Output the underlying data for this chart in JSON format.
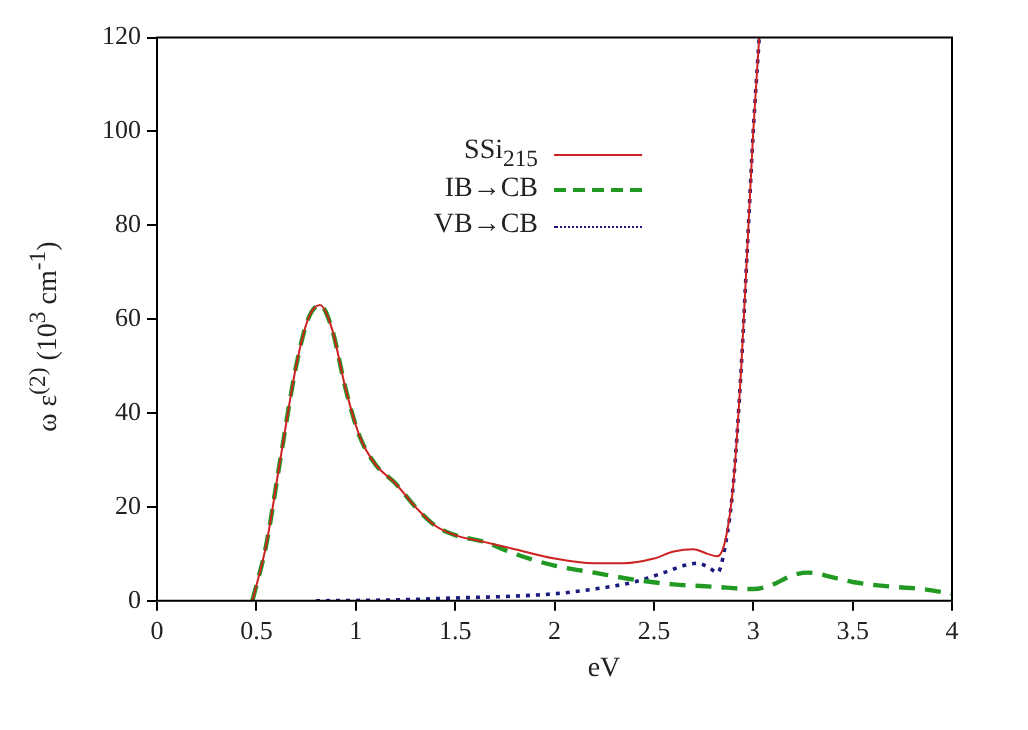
{
  "chart_data": {
    "type": "line",
    "xlabel": "eV",
    "ylabel": "ω ε$^{(2)}$  (10$^{3}$ cm$^{-1}$)",
    "xlim": [
      0,
      4
    ],
    "xticks": [
      0,
      0.5,
      1,
      1.5,
      2,
      2.5,
      3,
      3.5,
      4
    ],
    "ylim": [
      0,
      120
    ],
    "yticks": [
      0,
      20,
      40,
      60,
      80,
      100,
      120
    ],
    "grid": false,
    "legend": "top right",
    "marker": "none",
    "series": [
      {
        "name": "SSi$_{215}$",
        "color": "#cc2222",
        "line_style": "solid",
        "x": [
          0.48,
          0.55,
          0.62,
          0.7,
          0.76,
          0.82,
          0.88,
          0.95,
          1.02,
          1.1,
          1.2,
          1.3,
          1.4,
          1.5,
          1.65,
          1.8,
          2.0,
          2.2,
          2.35,
          2.5,
          2.6,
          2.7,
          2.77,
          2.82,
          2.86,
          2.9,
          2.94,
          2.97,
          3.0,
          3.03
        ],
        "values": [
          0,
          12,
          30,
          50,
          60,
          63,
          58,
          45,
          35,
          29,
          25,
          20,
          16,
          14,
          12.5,
          11,
          9,
          8,
          8,
          9,
          10.5,
          11,
          10,
          9.5,
          13,
          25,
          50,
          75,
          100,
          120
        ]
      },
      {
        "name": "IB→CB",
        "color": "#229922",
        "line_style": "dashed",
        "x": [
          0.48,
          0.55,
          0.62,
          0.7,
          0.76,
          0.82,
          0.88,
          0.95,
          1.02,
          1.1,
          1.2,
          1.3,
          1.4,
          1.5,
          1.65,
          1.8,
          2.0,
          2.2,
          2.4,
          2.6,
          2.8,
          3.0,
          3.1,
          3.2,
          3.28,
          3.4,
          3.5,
          3.7,
          3.85,
          4.0
        ],
        "values": [
          0,
          12,
          30,
          50,
          60,
          63,
          58,
          45,
          35,
          29,
          25,
          20,
          16,
          14,
          12.5,
          10,
          7.5,
          6,
          4.5,
          3.5,
          3,
          2.5,
          3.5,
          5.5,
          6,
          5,
          4,
          3,
          2.5,
          1.5
        ]
      },
      {
        "name": "VB→CB",
        "color": "#1a1a80",
        "line_style": "dotted",
        "x": [
          0.8,
          1.2,
          1.5,
          1.8,
          2.0,
          2.2,
          2.4,
          2.55,
          2.65,
          2.72,
          2.78,
          2.82,
          2.86,
          2.9,
          2.94,
          2.97,
          3.0,
          3.03
        ],
        "values": [
          0,
          0.2,
          0.6,
          1,
          1.5,
          2.5,
          4,
          6,
          7.5,
          8,
          7,
          6,
          12,
          25,
          50,
          75,
          100,
          120
        ]
      }
    ]
  }
}
